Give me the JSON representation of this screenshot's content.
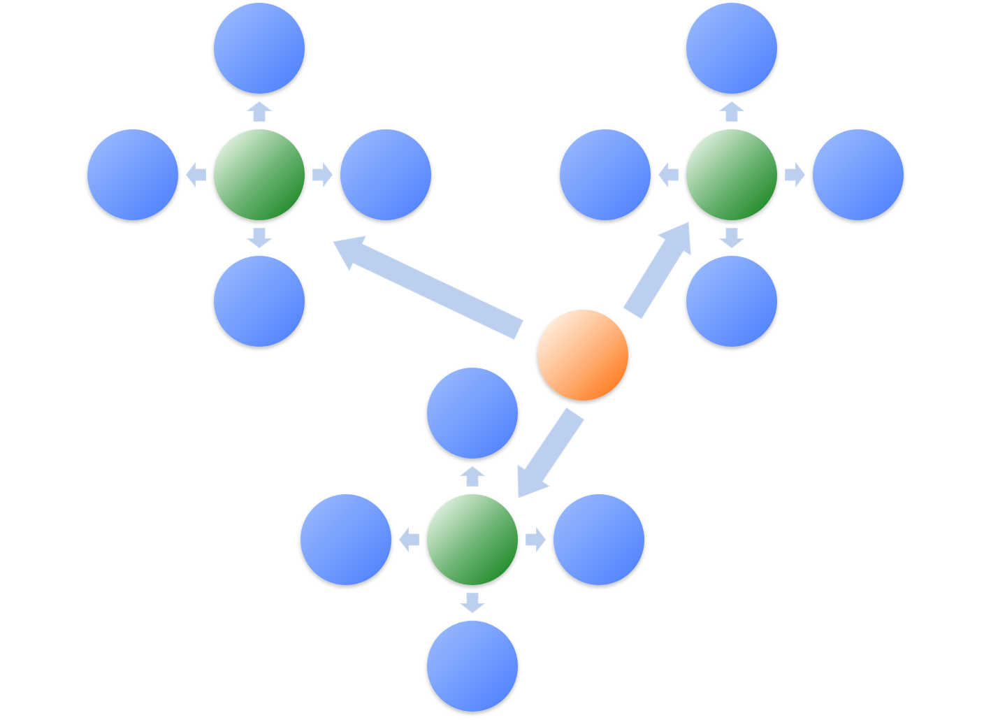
{
  "diagram": {
    "type": "hub-and-spoke network",
    "colors": {
      "background": "#ffffff",
      "source_node": "#ff7a1f",
      "hub_node": "#1f8a28",
      "leaf_node": "#4a7dff",
      "arrow": "#b7cdf0"
    },
    "source": {
      "role": "source",
      "color_name": "orange"
    },
    "clusters": [
      {
        "hub_color_name": "green",
        "leaf_count": 4,
        "leaves": [
          "up",
          "left",
          "right",
          "down"
        ]
      },
      {
        "hub_color_name": "green",
        "leaf_count": 4,
        "leaves": [
          "up",
          "left",
          "right",
          "down"
        ]
      },
      {
        "hub_color_name": "green",
        "leaf_count": 4,
        "leaves": [
          "up",
          "left",
          "right",
          "down"
        ]
      }
    ]
  }
}
